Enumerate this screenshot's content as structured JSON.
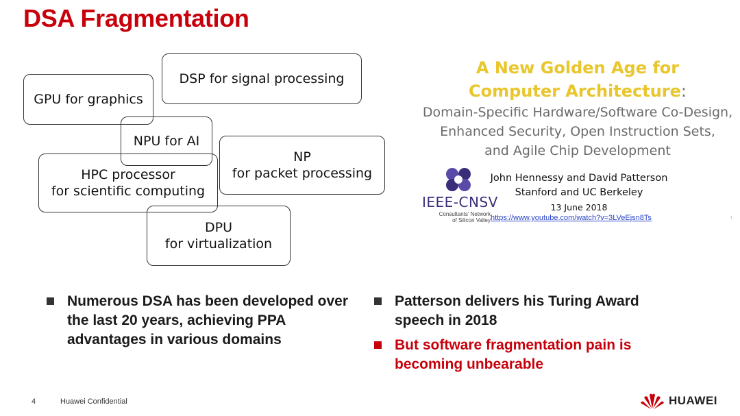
{
  "slide": {
    "title": "DSA Fragmentation"
  },
  "boxes": {
    "dsp": "DSP for signal processing",
    "gpu": "GPU for graphics",
    "npu": "NPU for AI",
    "np": [
      "NP",
      "for packet processing"
    ],
    "hpc": [
      "HPC processor",
      "for scientific computing"
    ],
    "dpu": [
      "DPU",
      "for virtualization"
    ]
  },
  "talk": {
    "title_line1": "A New Golden Age for",
    "title_line2": "Computer Architecture",
    "title_colon": ":",
    "subtitle": [
      "Domain-Specific Hardware/Software Co-Design,",
      "Enhanced Security, Open Instruction Sets,",
      "and Agile Chip Development"
    ],
    "authors": "John Hennessy and David Patterson",
    "affiliation": "Stanford and UC Berkeley",
    "date": "13 June 2018",
    "link": "https://www.youtube.com/watch?v=3LVeEjsn8Ts",
    "org_name": "IEEE-CNSV",
    "org_sub": [
      "Consultants' Network",
      "of Silicon Valley"
    ],
    "tiny_mark": "1"
  },
  "bullets_left": [
    "Numerous DSA has been developed over the last 20 years, achieving PPA advantages in various domains"
  ],
  "bullets_right": {
    "first": "Patterson delivers his Turing Award speech in 2018",
    "second": "But software fragmentation pain is becoming unbearable"
  },
  "footer": {
    "page_number": "4",
    "confidential": "Huawei Confidential",
    "brand": "HUAWEI"
  },
  "colors": {
    "accent_red": "#c7000b",
    "golden_yellow": "#e8c62c",
    "ieee_purple": "#3b2d7a"
  },
  "icons": {
    "ieee": "ieee-cnsv-logo-icon",
    "huawei": "huawei-logo-icon"
  }
}
